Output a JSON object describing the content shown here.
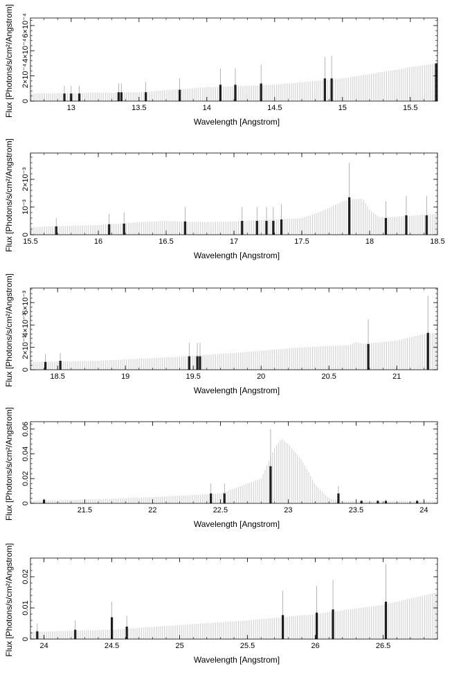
{
  "chart_data": [
    {
      "type": "bar",
      "xlabel": "Wavelength [Angstrom]",
      "ylabel": "Flux [Photons/s/cm²/Angstrom]",
      "xlim": [
        12.7,
        15.7
      ],
      "ylim": [
        0,
        0.00066
      ],
      "xticks": [
        13,
        13.5,
        14,
        14.5,
        15,
        15.5
      ],
      "xtick_labels": [
        "13",
        "13.5",
        "14",
        "14.5",
        "15",
        "15.5"
      ],
      "yticks": [
        0,
        0.0002,
        0.0004,
        0.0006
      ],
      "ytick_labels": [
        "0",
        "2×10⁻⁴",
        "4×10⁻⁴",
        "6×10⁻⁴"
      ],
      "continuum": [
        [
          12.7,
          6e-05
        ],
        [
          13.5,
          7e-05
        ],
        [
          14.0,
          0.00011
        ],
        [
          14.5,
          0.00013
        ],
        [
          15.0,
          0.00018
        ],
        [
          15.4,
          0.00025
        ],
        [
          15.5,
          0.00027
        ],
        [
          15.7,
          0.0003
        ]
      ],
      "lines": [
        {
          "x": 12.95,
          "y": 6e-05,
          "err": 0.00012
        },
        {
          "x": 13.0,
          "y": 6e-05,
          "err": 0.00012
        },
        {
          "x": 13.06,
          "y": 6e-05,
          "err": 0.00012
        },
        {
          "x": 13.35,
          "y": 7e-05,
          "err": 0.00014
        },
        {
          "x": 13.37,
          "y": 7e-05,
          "err": 0.00014
        },
        {
          "x": 13.55,
          "y": 7e-05,
          "err": 0.00015
        },
        {
          "x": 13.8,
          "y": 9e-05,
          "err": 0.00018
        },
        {
          "x": 14.1,
          "y": 0.00013,
          "err": 0.00026
        },
        {
          "x": 14.21,
          "y": 0.00013,
          "err": 0.00026
        },
        {
          "x": 14.4,
          "y": 0.00014,
          "err": 0.00029
        },
        {
          "x": 14.87,
          "y": 0.00018,
          "err": 0.00035
        },
        {
          "x": 14.92,
          "y": 0.00018,
          "err": 0.00036
        },
        {
          "x": 15.69,
          "y": 0.0003,
          "err": 0.0003
        }
      ]
    },
    {
      "type": "bar",
      "xlabel": "Wavelength [Angstrom]",
      "ylabel": "Flux [Photons/s/cm²/Angstrom]",
      "xlim": [
        15.5,
        18.5
      ],
      "ylim": [
        0,
        0.00295
      ],
      "xticks": [
        15.5,
        16,
        16.5,
        17,
        17.5,
        18,
        18.5
      ],
      "xtick_labels": [
        "15.5",
        "16",
        "16.5",
        "17",
        "17.5",
        "18",
        "18.5"
      ],
      "yticks": [
        0,
        0.001,
        0.002
      ],
      "ytick_labels": [
        "0",
        "10⁻³",
        "2×10⁻³"
      ],
      "continuum": [
        [
          15.5,
          0.00028
        ],
        [
          16.0,
          0.00035
        ],
        [
          16.3,
          0.00045
        ],
        [
          16.5,
          0.0005
        ],
        [
          16.8,
          0.00045
        ],
        [
          17.0,
          0.00048
        ],
        [
          17.3,
          0.00055
        ],
        [
          17.5,
          0.0006
        ],
        [
          17.65,
          0.00085
        ],
        [
          17.8,
          0.0012
        ],
        [
          17.87,
          0.00128
        ],
        [
          17.95,
          0.0013
        ],
        [
          18.0,
          0.0009
        ],
        [
          18.07,
          0.00063
        ],
        [
          18.2,
          0.00065
        ],
        [
          18.5,
          0.00075
        ]
      ],
      "lines": [
        {
          "x": 15.69,
          "y": 0.0003,
          "err": 0.0006
        },
        {
          "x": 16.08,
          "y": 0.00038,
          "err": 0.00075
        },
        {
          "x": 16.19,
          "y": 0.0004,
          "err": 0.0008
        },
        {
          "x": 16.64,
          "y": 0.00048,
          "err": 0.001
        },
        {
          "x": 17.06,
          "y": 0.0005,
          "err": 0.001
        },
        {
          "x": 17.17,
          "y": 0.0005,
          "err": 0.001
        },
        {
          "x": 17.24,
          "y": 0.0005,
          "err": 0.001
        },
        {
          "x": 17.29,
          "y": 0.0005,
          "err": 0.001
        },
        {
          "x": 17.35,
          "y": 0.00055,
          "err": 0.0011
        },
        {
          "x": 17.85,
          "y": 0.00135,
          "err": 0.0026
        },
        {
          "x": 18.12,
          "y": 0.0006,
          "err": 0.0012
        },
        {
          "x": 18.27,
          "y": 0.0007,
          "err": 0.0014
        },
        {
          "x": 18.42,
          "y": 0.0007,
          "err": 0.0014
        }
      ]
    },
    {
      "type": "bar",
      "xlabel": "Wavelength [Angstrom]",
      "ylabel": "Flux [Photons/s/cm²/Angstrom]",
      "xlim": [
        18.3,
        21.3
      ],
      "ylim": [
        0,
        0.0073
      ],
      "xticks": [
        18.5,
        19,
        19.5,
        20,
        20.5,
        21
      ],
      "xtick_labels": [
        "18.5",
        "19",
        "19.5",
        "20",
        "20.5",
        "21"
      ],
      "yticks": [
        0,
        0.002,
        0.004,
        0.006
      ],
      "ytick_labels": [
        "0",
        "2×10⁻³",
        "4×10⁻³",
        "6×10⁻³"
      ],
      "continuum": [
        [
          18.3,
          0.0007
        ],
        [
          18.8,
          0.0008
        ],
        [
          19.3,
          0.0011
        ],
        [
          19.8,
          0.0015
        ],
        [
          20.3,
          0.002
        ],
        [
          20.65,
          0.0022
        ],
        [
          20.7,
          0.0025
        ],
        [
          20.75,
          0.0023
        ],
        [
          21.0,
          0.0026
        ],
        [
          21.2,
          0.0032
        ],
        [
          21.3,
          0.0033
        ]
      ],
      "lines": [
        {
          "x": 18.41,
          "y": 0.0007,
          "err": 0.0014
        },
        {
          "x": 18.52,
          "y": 0.0008,
          "err": 0.0015
        },
        {
          "x": 19.47,
          "y": 0.0012,
          "err": 0.0024
        },
        {
          "x": 19.53,
          "y": 0.0012,
          "err": 0.0024
        },
        {
          "x": 19.55,
          "y": 0.0012,
          "err": 0.0024
        },
        {
          "x": 20.79,
          "y": 0.0023,
          "err": 0.0045
        },
        {
          "x": 21.23,
          "y": 0.0033,
          "err": 0.0066
        }
      ]
    },
    {
      "type": "bar",
      "xlabel": "Wavelength [Angstrom]",
      "ylabel": "Flux [Photons/s/cm²/Angstrom]",
      "xlim": [
        21.1,
        24.1
      ],
      "ylim": [
        0,
        0.066
      ],
      "xticks": [
        21.5,
        22,
        22.5,
        23,
        23.5,
        24
      ],
      "xtick_labels": [
        "21.5",
        "22",
        "22.5",
        "23",
        "23.5",
        "24"
      ],
      "yticks": [
        0,
        0.02,
        0.04,
        0.06
      ],
      "ytick_labels": [
        "0",
        "0.02",
        "0.04",
        "0.06"
      ],
      "continuum": [
        [
          21.1,
          0.002
        ],
        [
          21.5,
          0.003
        ],
        [
          22.0,
          0.005
        ],
        [
          22.5,
          0.008
        ],
        [
          22.8,
          0.02
        ],
        [
          22.9,
          0.045
        ],
        [
          22.95,
          0.052
        ],
        [
          23.0,
          0.048
        ],
        [
          23.1,
          0.035
        ],
        [
          23.2,
          0.015
        ],
        [
          23.3,
          0.004
        ],
        [
          23.4,
          0.002
        ],
        [
          24.1,
          0.002
        ]
      ],
      "lines": [
        {
          "x": 21.2,
          "y": 0.003,
          "err": 0.004
        },
        {
          "x": 22.43,
          "y": 0.008,
          "err": 0.016
        },
        {
          "x": 22.53,
          "y": 0.008,
          "err": 0.016
        },
        {
          "x": 22.87,
          "y": 0.03,
          "err": 0.06
        },
        {
          "x": 23.37,
          "y": 0.008,
          "err": 0.014
        },
        {
          "x": 23.54,
          "y": 0.002,
          "err": 0.003
        },
        {
          "x": 23.66,
          "y": 0.002,
          "err": 0.003
        },
        {
          "x": 23.72,
          "y": 0.002,
          "err": 0.003
        },
        {
          "x": 23.95,
          "y": 0.002,
          "err": 0.003
        }
      ]
    },
    {
      "type": "bar",
      "xlabel": "Wavelength [Angstrom]",
      "ylabel": "Flux [Photons/s/cm²/Angstrom]",
      "xlim": [
        23.9,
        26.9
      ],
      "ylim": [
        0,
        0.026
      ],
      "xticks": [
        24,
        24.5,
        25,
        25.5,
        26,
        26.5
      ],
      "xtick_labels": [
        "24",
        "24.5",
        "25",
        "25.5",
        "26",
        "26.5"
      ],
      "yticks": [
        0,
        0.01,
        0.02
      ],
      "ytick_labels": [
        "0",
        "0.01",
        "0.02"
      ],
      "continuum": [
        [
          23.9,
          0.0023
        ],
        [
          24.5,
          0.003
        ],
        [
          25.0,
          0.0045
        ],
        [
          25.5,
          0.006
        ],
        [
          26.0,
          0.008
        ],
        [
          26.5,
          0.011
        ],
        [
          26.9,
          0.015
        ]
      ],
      "lines": [
        {
          "x": 23.95,
          "y": 0.0025,
          "err": 0.005
        },
        {
          "x": 24.23,
          "y": 0.003,
          "err": 0.006
        },
        {
          "x": 24.5,
          "y": 0.007,
          "err": 0.012
        },
        {
          "x": 24.61,
          "y": 0.004,
          "err": 0.0075
        },
        {
          "x": 25.76,
          "y": 0.0077,
          "err": 0.0155
        },
        {
          "x": 26.01,
          "y": 0.0085,
          "err": 0.017
        },
        {
          "x": 26.13,
          "y": 0.0095,
          "err": 0.019
        },
        {
          "x": 26.52,
          "y": 0.012,
          "err": 0.024
        }
      ]
    }
  ]
}
